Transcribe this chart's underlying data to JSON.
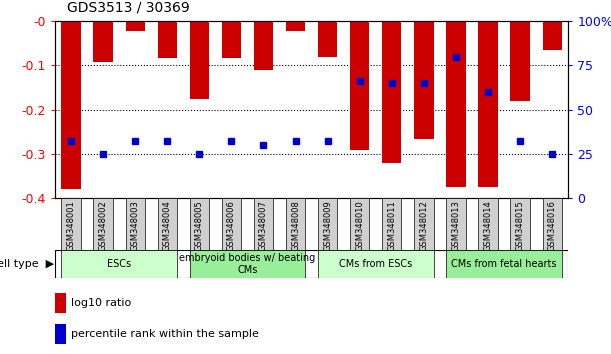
{
  "title": "GDS3513 / 30369",
  "samples": [
    "GSM348001",
    "GSM348002",
    "GSM348003",
    "GSM348004",
    "GSM348005",
    "GSM348006",
    "GSM348007",
    "GSM348008",
    "GSM348009",
    "GSM348010",
    "GSM348011",
    "GSM348012",
    "GSM348013",
    "GSM348014",
    "GSM348015",
    "GSM348016"
  ],
  "log10_ratio": [
    -0.38,
    -0.093,
    -0.022,
    -0.082,
    -0.175,
    -0.082,
    -0.11,
    -0.022,
    -0.08,
    -0.29,
    -0.32,
    -0.265,
    -0.375,
    -0.375,
    -0.18,
    -0.065
  ],
  "percentile_rank_y": [
    -0.27,
    -0.3,
    -0.27,
    -0.27,
    -0.3,
    -0.27,
    -0.28,
    -0.27,
    -0.27,
    -0.135,
    -0.14,
    -0.14,
    -0.08,
    -0.16,
    -0.27,
    -0.3
  ],
  "cell_type_groups": [
    {
      "label": "ESCs",
      "start": 0,
      "end": 3,
      "color": "#ccffcc"
    },
    {
      "label": "embryoid bodies w/ beating\nCMs",
      "start": 4,
      "end": 7,
      "color": "#99ee99"
    },
    {
      "label": "CMs from ESCs",
      "start": 8,
      "end": 11,
      "color": "#ccffcc"
    },
    {
      "label": "CMs from fetal hearts",
      "start": 12,
      "end": 15,
      "color": "#99ee99"
    }
  ],
  "bar_color": "#cc0000",
  "marker_color": "#0000cc",
  "ylim_left": [
    -0.4,
    0.0
  ],
  "yticks_left": [
    -0.4,
    -0.3,
    -0.2,
    -0.1,
    0.0
  ],
  "ytick_labels_left": [
    "-0.4",
    "-0.3",
    "-0.2",
    "-0.1",
    "-0"
  ],
  "yticks_right": [
    0.0,
    0.25,
    0.5,
    0.75,
    1.0
  ],
  "ytick_labels_right": [
    "0",
    "25",
    "50",
    "75",
    "100%"
  ],
  "bar_width": 0.6,
  "background_color": "#ffffff"
}
